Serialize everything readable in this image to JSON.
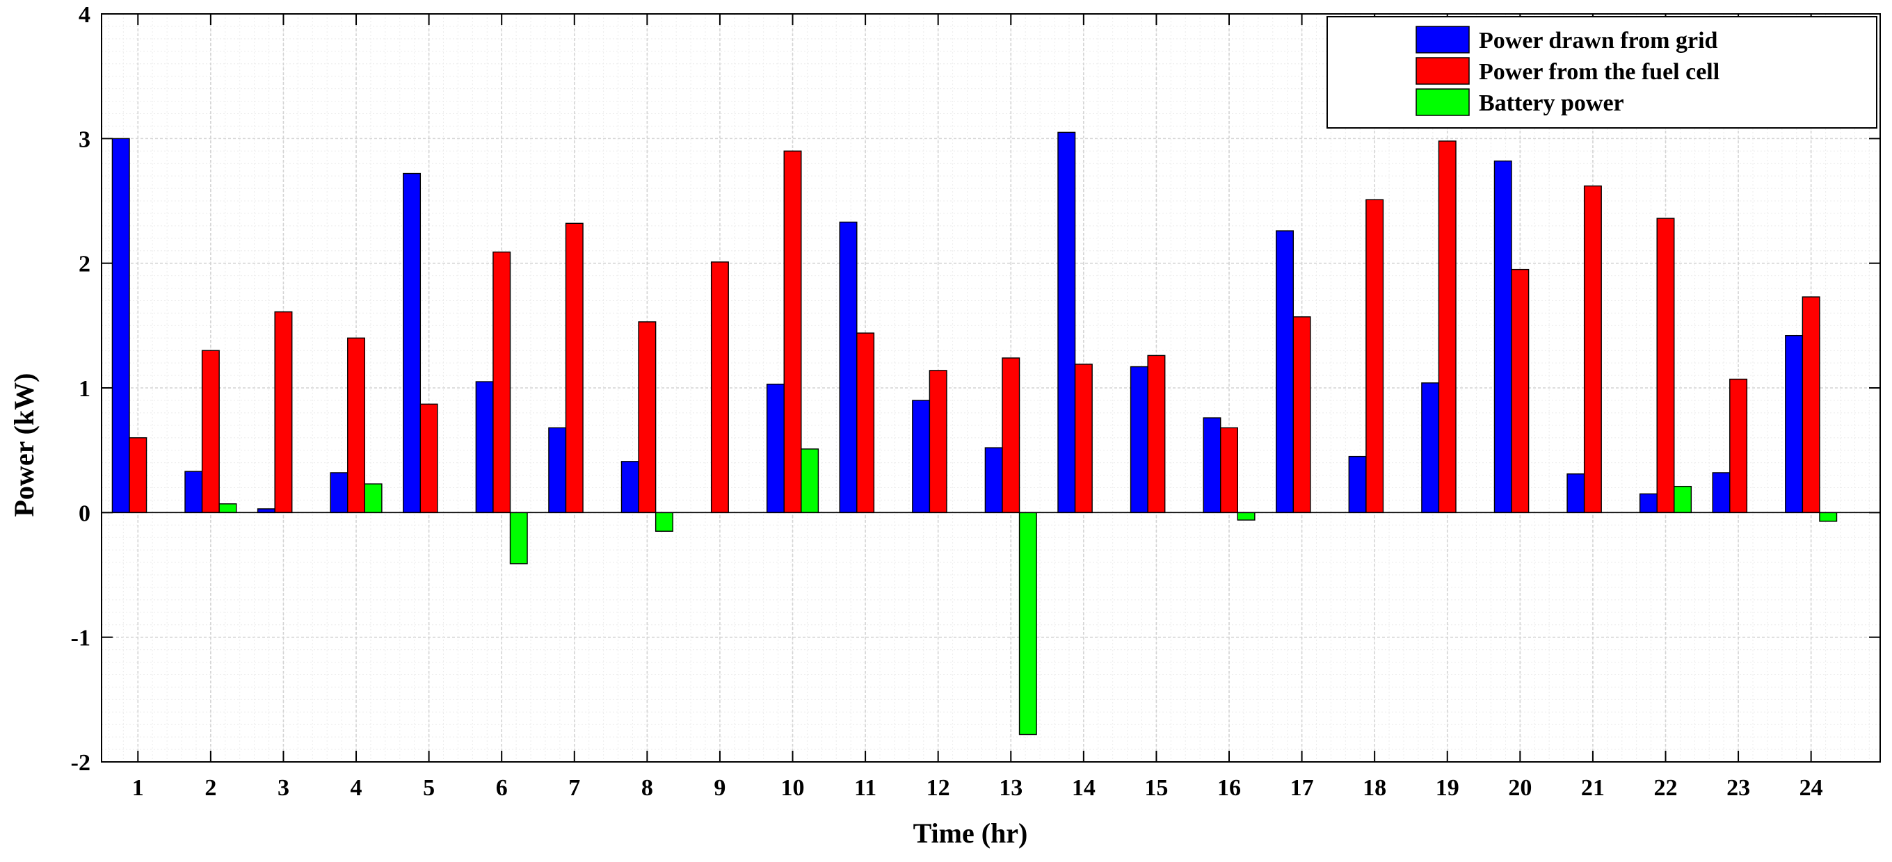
{
  "chart_data": {
    "type": "bar",
    "title": "",
    "xlabel": "Time (hr)",
    "ylabel": "Power (kW)",
    "ylim": [
      -2,
      4
    ],
    "yticks": [
      "-2",
      "-1",
      "0",
      "1",
      "2",
      "3",
      "4"
    ],
    "grid": true,
    "legend_position": "top-right",
    "categories": [
      "1",
      "2",
      "3",
      "4",
      "5",
      "6",
      "7",
      "8",
      "9",
      "10",
      "11",
      "12",
      "13",
      "14",
      "15",
      "16",
      "17",
      "18",
      "19",
      "20",
      "21",
      "22",
      "23",
      "24"
    ],
    "series": [
      {
        "name": "Power drawn from grid",
        "color": "#0000ff",
        "values": [
          3.0,
          0.33,
          0.03,
          0.32,
          2.72,
          1.05,
          0.68,
          0.41,
          0,
          1.03,
          2.33,
          0.9,
          0.52,
          3.05,
          1.17,
          0.76,
          2.26,
          0.45,
          1.04,
          2.82,
          0.31,
          0.15,
          0.32,
          1.42
        ]
      },
      {
        "name": "Power from the fuel cell",
        "color": "#ff0000",
        "values": [
          0.6,
          1.3,
          1.61,
          1.4,
          0.87,
          2.09,
          2.32,
          1.53,
          2.01,
          2.9,
          1.44,
          1.14,
          1.24,
          1.19,
          1.26,
          0.68,
          1.57,
          2.51,
          2.98,
          1.95,
          2.62,
          2.36,
          1.07,
          1.73
        ]
      },
      {
        "name": "Battery power",
        "color": "#00ff00",
        "values": [
          0,
          0.07,
          0,
          0.23,
          0,
          -0.41,
          0,
          -0.15,
          0,
          0.51,
          0,
          0,
          -1.78,
          0,
          0,
          -0.06,
          0,
          0,
          0,
          0,
          0,
          0.21,
          0,
          -0.07
        ]
      }
    ]
  }
}
